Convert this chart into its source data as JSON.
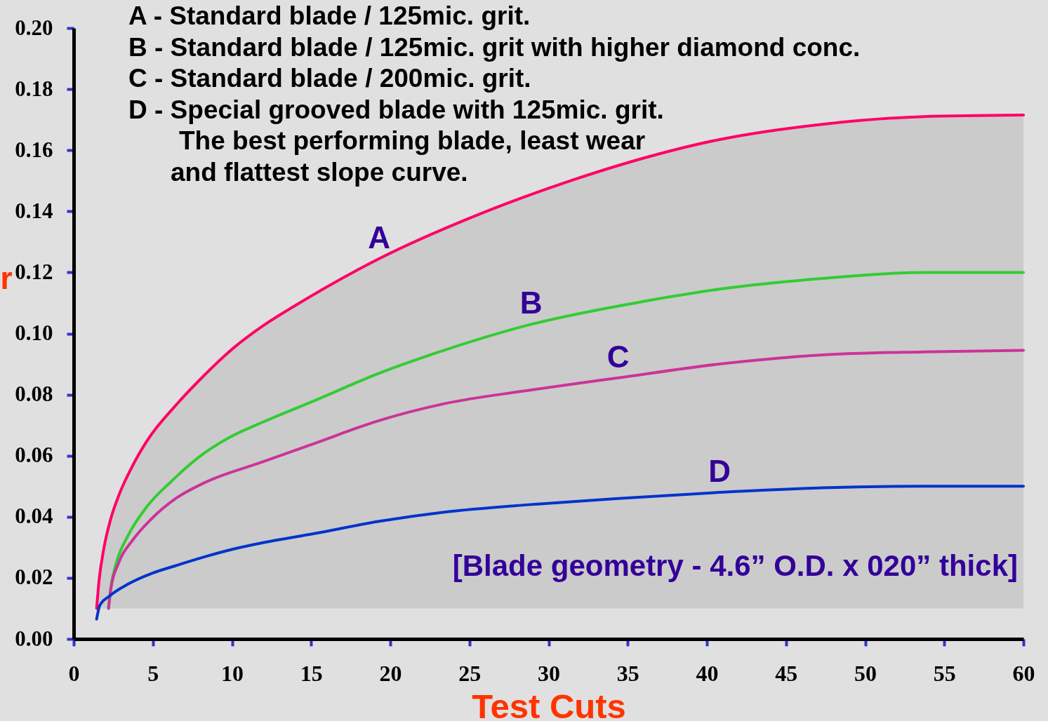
{
  "chart_data": {
    "type": "line",
    "xlabel": "Test Cuts",
    "ylabel": "r",
    "xlim": [
      0,
      60
    ],
    "ylim": [
      0,
      0.2
    ],
    "xticks": [
      0,
      5,
      10,
      15,
      20,
      25,
      30,
      35,
      40,
      45,
      50,
      55,
      60
    ],
    "yticks": [
      {
        "value": 0,
        "label": "0.00"
      },
      {
        "value": 0.02,
        "label": "0.02"
      },
      {
        "value": 0.04,
        "label": "0.04"
      },
      {
        "value": 0.06,
        "label": "0.06"
      },
      {
        "value": 0.08,
        "label": "0.08"
      },
      {
        "value": 0.1,
        "label": "0.10"
      },
      {
        "value": 0.12,
        "label": "0.12"
      },
      {
        "value": 0.14,
        "label": "0.14"
      },
      {
        "value": 0.16,
        "label": "0.16"
      },
      {
        "value": 0.18,
        "label": "0.18"
      },
      {
        "value": 0.2,
        "label": "0.20"
      }
    ],
    "line_style": "solid",
    "annotations": [
      "A - Standard blade / 125mic. grit.",
      "B - Standard blade / 125mic. grit with higher diamond conc.",
      "C - Standard blade / 200mic. grit.",
      "D - Special grooved blade with 125mic. grit.",
      "The best performing blade, least wear",
      "and flattest slope curve.",
      "[Blade geometry - 4.6” O.D. x 020” thick]",
      {
        "text": "A",
        "x": 19.3,
        "y": 0.1245
      },
      {
        "text": "B",
        "x": 28.9,
        "y": 0.103
      },
      {
        "text": "C",
        "x": 34.4,
        "y": 0.0855
      },
      {
        "text": "D",
        "x": 40.8,
        "y": 0.048
      }
    ],
    "series": [
      {
        "color": "#ff0066",
        "x": [
          1.45,
          1.6,
          1.9,
          2.35,
          2.85,
          3.6,
          4.65,
          6.45,
          7.9,
          10.15,
          11.95,
          13.95,
          19.3,
          25.6,
          31.1,
          34.4,
          40.8,
          47.3,
          53.7,
          60
        ],
        "values": [
          0.01,
          0.019,
          0.0295,
          0.0395,
          0.047,
          0.0555,
          0.065,
          0.0765,
          0.0845,
          0.0955,
          0.1025,
          0.109,
          0.1245,
          0.139,
          0.1495,
          0.155,
          0.1635,
          0.1685,
          0.171,
          0.1715
        ],
        "lower": [
          0.01,
          0.01,
          0.01,
          0.01,
          0.01,
          0.01,
          0.01,
          0.01,
          0.01,
          0.01,
          0.01,
          0.01,
          0.01,
          0.01,
          0.01,
          0.01,
          0.01,
          0.01,
          0.01,
          0.01
        ],
        "upper": [
          0.01,
          0.019,
          0.0295,
          0.0395,
          0.047,
          0.0555,
          0.065,
          0.0765,
          0.0845,
          0.0955,
          0.1025,
          0.109,
          0.1245,
          0.139,
          0.1495,
          0.155,
          0.1635,
          0.1685,
          0.171,
          0.1715
        ]
      },
      {
        "color": "#33cc33",
        "x": [
          2.2,
          2.35,
          2.7,
          3.45,
          4.65,
          6.15,
          7.9,
          9.85,
          11.95,
          15.2,
          19.3,
          23.4,
          28.9,
          36,
          40.8,
          47.3,
          53.7,
          60
        ],
        "values": [
          0.01,
          0.017,
          0.025,
          0.034,
          0.0435,
          0.0515,
          0.0595,
          0.066,
          0.071,
          0.078,
          0.087,
          0.0945,
          0.103,
          0.1105,
          0.1145,
          0.118,
          0.12,
          0.12
        ]
      },
      {
        "color": "#cc3399",
        "x": [
          2.2,
          2.35,
          2.85,
          3.75,
          4.95,
          6.45,
          8.2,
          11.95,
          15.2,
          19.3,
          23.4,
          28.9,
          34.4,
          40.8,
          47.3,
          53.7,
          60
        ],
        "values": [
          0.01,
          0.0165,
          0.025,
          0.0325,
          0.0395,
          0.046,
          0.051,
          0.058,
          0.064,
          0.0715,
          0.077,
          0.0815,
          0.0855,
          0.09,
          0.093,
          0.094,
          0.0945
        ]
      },
      {
        "color": "#0033cc",
        "x": [
          1.45,
          1.65,
          2.25,
          3.45,
          4.95,
          6.45,
          8.35,
          10.15,
          11.95,
          15.2,
          19.3,
          23.4,
          28.9,
          34.4,
          40.8,
          47.3,
          53.7,
          60
        ],
        "values": [
          0.0065,
          0.011,
          0.014,
          0.018,
          0.0215,
          0.024,
          0.027,
          0.0295,
          0.0315,
          0.0345,
          0.0385,
          0.0415,
          0.044,
          0.046,
          0.048,
          0.0495,
          0.05,
          0.05
        ]
      }
    ]
  }
}
